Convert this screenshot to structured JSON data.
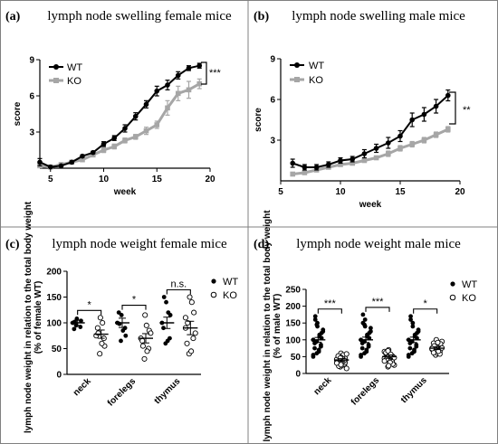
{
  "chart_data": [
    {
      "type": "line",
      "panel_label": "(a)",
      "title": "lymph node swelling female mice",
      "xlabel": "week",
      "ylabel": "score",
      "xlim": [
        4,
        20
      ],
      "ylim": [
        0,
        9
      ],
      "xticks": [
        5,
        10,
        15,
        20
      ],
      "yticks": [
        3,
        6,
        9
      ],
      "grid": false,
      "legend_position": "top-left",
      "series": [
        {
          "name": "WT",
          "color": "#000000",
          "marker": "circle",
          "x": [
            4,
            5,
            6,
            7,
            8,
            9,
            10,
            11,
            12,
            13,
            14,
            15,
            16,
            17,
            18,
            19
          ],
          "y": [
            0.5,
            0.1,
            0.2,
            0.5,
            1.0,
            1.3,
            2.0,
            2.5,
            3.3,
            4.3,
            5.3,
            6.4,
            6.9,
            7.7,
            8.3,
            8.5
          ],
          "err": [
            0.3,
            0.05,
            0.05,
            0.1,
            0.1,
            0.1,
            0.2,
            0.2,
            0.3,
            0.3,
            0.3,
            0.4,
            0.4,
            0.3,
            0.2,
            0.2
          ]
        },
        {
          "name": "KO",
          "color": "#a6a6a6",
          "marker": "square",
          "x": [
            4,
            5,
            6,
            7,
            8,
            9,
            10,
            11,
            12,
            13,
            14,
            15,
            16,
            17,
            18,
            19
          ],
          "y": [
            0.2,
            0.1,
            0.3,
            0.5,
            0.7,
            1.1,
            1.5,
            1.8,
            2.3,
            2.6,
            3.1,
            3.6,
            5.0,
            6.2,
            6.5,
            7.0
          ],
          "err": [
            0.1,
            0.05,
            0.05,
            0.1,
            0.1,
            0.1,
            0.2,
            0.2,
            0.2,
            0.2,
            0.3,
            0.3,
            0.6,
            0.6,
            0.7,
            0.4
          ]
        }
      ],
      "annotation": "***"
    },
    {
      "type": "line",
      "panel_label": "(b)",
      "title": "lymph node swelling male mice",
      "xlabel": "week",
      "ylabel": "score",
      "xlim": [
        5,
        20
      ],
      "ylim": [
        0,
        9
      ],
      "xticks": [
        5,
        10,
        15,
        20
      ],
      "yticks": [
        3,
        6,
        9
      ],
      "grid": false,
      "legend_position": "top-left",
      "series": [
        {
          "name": "WT",
          "color": "#000000",
          "marker": "circle",
          "x": [
            6,
            7,
            8,
            9,
            10,
            11,
            12,
            13,
            14,
            15,
            16,
            17,
            18,
            19
          ],
          "y": [
            1.3,
            1.0,
            1.0,
            1.2,
            1.5,
            1.6,
            2.0,
            2.4,
            2.8,
            3.3,
            4.5,
            4.9,
            5.5,
            6.3
          ],
          "err": [
            0.3,
            0.2,
            0.2,
            0.2,
            0.2,
            0.2,
            0.3,
            0.3,
            0.4,
            0.4,
            0.5,
            0.5,
            0.5,
            0.4
          ]
        },
        {
          "name": "KO",
          "color": "#a6a6a6",
          "marker": "square",
          "x": [
            6,
            7,
            8,
            9,
            10,
            11,
            12,
            13,
            14,
            15,
            16,
            17,
            18,
            19
          ],
          "y": [
            0.5,
            0.6,
            0.8,
            1.0,
            1.2,
            1.3,
            1.5,
            1.7,
            2.0,
            2.4,
            2.7,
            3.0,
            3.4,
            3.8
          ],
          "err": [
            0.1,
            0.1,
            0.1,
            0.1,
            0.1,
            0.1,
            0.1,
            0.1,
            0.2,
            0.2,
            0.2,
            0.2,
            0.2,
            0.2
          ]
        }
      ],
      "annotation": "**"
    },
    {
      "type": "scatter",
      "panel_label": "(c)",
      "title": "lymph node weight female mice",
      "ylabel": "lymph node weight in relation to the total body weight (% of  female WT)",
      "ylim": [
        0,
        200
      ],
      "yticks": [
        0,
        50,
        100,
        150,
        200
      ],
      "categories": [
        "neck",
        "forelegs",
        "thymus"
      ],
      "legend_position": "top-right",
      "series": [
        {
          "name": "WT",
          "marker": "filled-circle",
          "values": [
            [
              100,
              95,
              108,
              92,
              104,
              88,
              102
            ],
            [
              100,
              65,
              115,
              90,
              75,
              120,
              98,
              85
            ],
            [
              100,
              60,
              140,
              70,
              115,
              90,
              150,
              65,
              120
            ]
          ],
          "mean": [
            100,
            100,
            100
          ],
          "sem": [
            5,
            9,
            11
          ]
        },
        {
          "name": "KO",
          "marker": "open-circle",
          "values": [
            [
              75,
              40,
              110,
              70,
              55,
              90,
              80,
              60,
              100
            ],
            [
              70,
              30,
              115,
              50,
              85,
              65,
              55,
              95,
              45,
              80
            ],
            [
              90,
              40,
              150,
              70,
              120,
              60,
              100,
              45,
              140,
              80,
              110
            ]
          ],
          "mean": [
            78,
            70,
            90
          ],
          "sem": [
            8,
            9,
            13
          ]
        }
      ],
      "significance": [
        "*",
        "*",
        "n.s."
      ]
    },
    {
      "type": "scatter",
      "panel_label": "(d)",
      "title": "lymph node weight male mice",
      "ylabel": "lymph node weight in relation to the total body weight (% of  male WT)",
      "ylim": [
        0,
        250
      ],
      "yticks": [
        0,
        50,
        100,
        150,
        200,
        250
      ],
      "categories": [
        "neck",
        "forelegs",
        "thymus"
      ],
      "legend_position": "top-right",
      "series": [
        {
          "name": "WT",
          "marker": "filled-circle",
          "values": [
            [
              100,
              60,
              150,
              80,
              120,
              90,
              170,
              70,
              110,
              130,
              50,
              95,
              140,
              85,
              105,
              75,
              160,
              65,
              115,
              125,
              55,
              145
            ],
            [
              100,
              60,
              160,
              80,
              120,
              90,
              175,
              70,
              110,
              135,
              50,
              95,
              140,
              85,
              105,
              75,
              150,
              65,
              115,
              125,
              55,
              145
            ],
            [
              100,
              60,
              150,
              80,
              120,
              90,
              170,
              70,
              110,
              130,
              50,
              95,
              140,
              85,
              105,
              75,
              160,
              65,
              115,
              125,
              55
            ]
          ],
          "mean": [
            100,
            100,
            100
          ],
          "sem": [
            7,
            8,
            8
          ]
        },
        {
          "name": "KO",
          "marker": "open-circle",
          "values": [
            [
              40,
              20,
              60,
              30,
              45,
              50,
              35,
              25,
              55,
              15,
              42,
              38,
              48,
              28,
              33,
              52,
              22,
              44,
              36,
              58,
              31,
              46,
              26,
              39
            ],
            [
              45,
              20,
              70,
              35,
              50,
              60,
              40,
              30,
              55,
              25,
              65,
              48,
              38,
              52,
              28,
              62,
              42,
              33,
              57,
              47,
              37,
              67,
              23
            ],
            [
              75,
              55,
              100,
              65,
              80,
              90,
              70,
              60,
              85,
              95,
              72,
              68,
              78,
              58,
              88,
              62,
              82,
              92,
              66,
              76,
              74
            ]
          ],
          "mean": [
            40,
            50,
            75
          ],
          "sem": [
            4,
            5,
            4
          ]
        }
      ],
      "significance": [
        "***",
        "***",
        "*"
      ]
    }
  ]
}
